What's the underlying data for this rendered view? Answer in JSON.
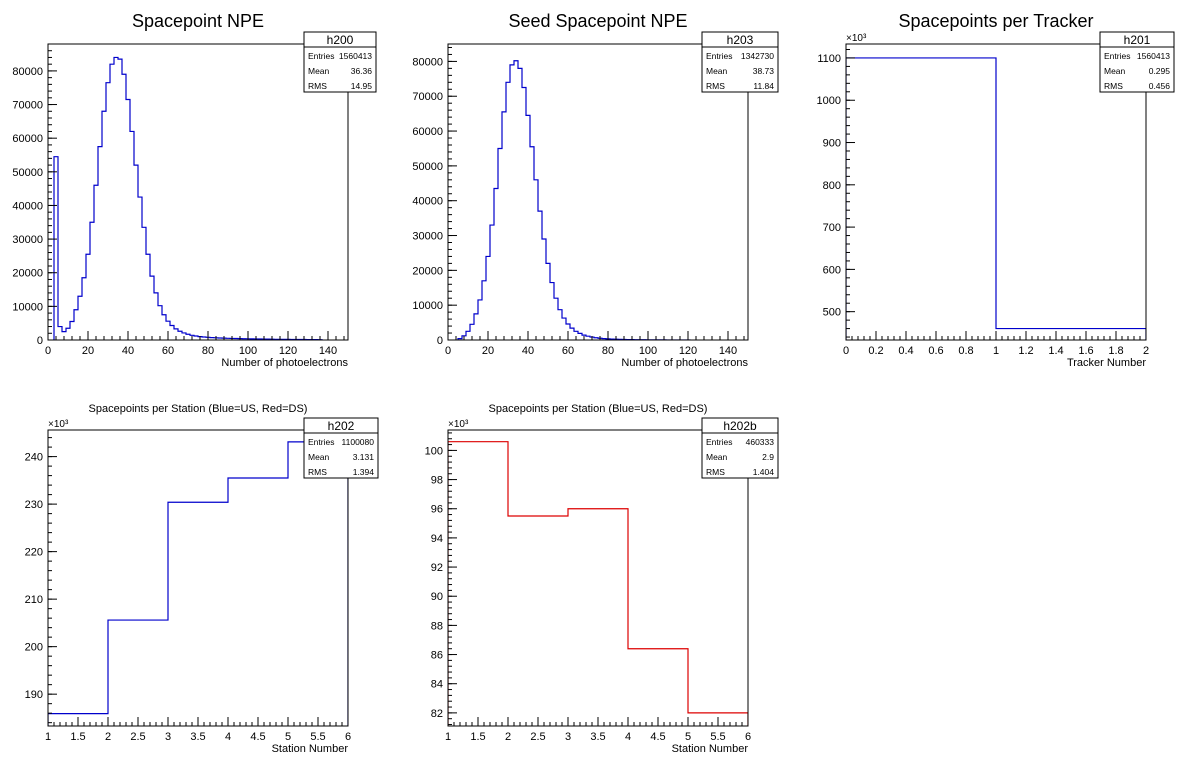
{
  "chart_data": [
    {
      "type": "bar",
      "title": "Spacepoint NPE",
      "xlabel": "Number of photoelectrons",
      "ylabel": "",
      "exponent_label": "",
      "xlim": [
        0,
        150
      ],
      "ylim": [
        0,
        88000
      ],
      "xticks": [
        0,
        20,
        40,
        60,
        80,
        100,
        120,
        140
      ],
      "yticks": [
        0,
        10000,
        20000,
        30000,
        40000,
        50000,
        60000,
        70000,
        80000
      ],
      "line_color": "#0000cc",
      "series": [
        {
          "bin_edges": [
            3,
            5,
            7,
            9,
            11,
            13,
            15,
            17,
            19,
            21,
            23,
            25,
            27,
            29,
            31,
            33,
            35,
            37,
            39,
            41,
            43,
            45,
            47,
            49,
            51,
            53,
            55,
            57,
            59,
            61,
            63,
            65,
            67,
            69,
            71,
            73,
            75,
            77,
            79,
            81,
            83,
            85,
            87,
            89,
            91,
            93,
            95,
            97,
            99,
            101,
            103,
            105,
            107,
            109,
            111,
            113,
            115,
            117,
            119,
            121,
            123,
            125,
            127,
            129,
            131,
            133,
            135,
            137
          ],
          "values": [
            54500,
            4000,
            2500,
            3500,
            5500,
            9000,
            13000,
            18500,
            25500,
            35000,
            46000,
            57500,
            68000,
            76500,
            82000,
            84000,
            83500,
            79000,
            71500,
            62000,
            52000,
            42500,
            33500,
            25500,
            19000,
            14000,
            10200,
            7500,
            5600,
            4300,
            3300,
            2600,
            2100,
            1700,
            1400,
            1200,
            1000,
            900,
            800,
            700,
            650,
            600,
            550,
            500,
            470,
            440,
            410,
            380,
            350,
            330,
            310,
            290,
            270,
            250,
            230,
            210,
            200,
            190,
            180,
            170,
            160,
            150,
            140,
            130,
            120,
            110,
            100
          ]
        }
      ],
      "stats": {
        "name": "h200",
        "entries_label": "Entries",
        "entries": "1560413",
        "mean_label": "Mean",
        "mean": "36.36",
        "rms_label": "RMS",
        "rms": "14.95"
      }
    },
    {
      "type": "bar",
      "title": "Seed Spacepoint NPE",
      "xlabel": "Number of photoelectrons",
      "ylabel": "",
      "exponent_label": "",
      "xlim": [
        0,
        150
      ],
      "ylim": [
        0,
        85000
      ],
      "xticks": [
        0,
        20,
        40,
        60,
        80,
        100,
        120,
        140
      ],
      "yticks": [
        0,
        10000,
        20000,
        30000,
        40000,
        50000,
        60000,
        70000,
        80000
      ],
      "line_color": "#0000cc",
      "series": [
        {
          "bin_edges": [
            5,
            7,
            9,
            11,
            13,
            15,
            17,
            19,
            21,
            23,
            25,
            27,
            29,
            31,
            33,
            35,
            37,
            39,
            41,
            43,
            45,
            47,
            49,
            51,
            53,
            55,
            57,
            59,
            61,
            63,
            65,
            67,
            69,
            71,
            73,
            75,
            77,
            79,
            81,
            83,
            85,
            87,
            89,
            91,
            93,
            95,
            97,
            99,
            101,
            103,
            105,
            107,
            109,
            111,
            113,
            115,
            117,
            119,
            121
          ],
          "values": [
            400,
            1200,
            2500,
            4500,
            7500,
            11500,
            17000,
            24000,
            33000,
            43500,
            55000,
            65500,
            74000,
            79000,
            80200,
            78000,
            72500,
            64500,
            55500,
            46000,
            37000,
            29000,
            22000,
            16500,
            12000,
            8700,
            6300,
            4600,
            3400,
            2500,
            1900,
            1400,
            1100,
            850,
            650,
            500,
            400,
            330,
            270,
            220,
            180,
            150,
            125,
            105,
            90,
            75,
            65,
            55,
            45,
            40,
            35,
            30,
            25,
            20,
            18,
            15,
            12,
            10
          ]
        }
      ],
      "stats": {
        "name": "h203",
        "entries_label": "Entries",
        "entries": "1342730",
        "mean_label": "Mean",
        "mean": "38.73",
        "rms_label": "RMS",
        "rms": "11.84"
      }
    },
    {
      "type": "bar",
      "title": "Spacepoints per Tracker",
      "xlabel": "Tracker Number",
      "ylabel": "",
      "exponent_label": "×10³",
      "xlim": [
        0,
        2
      ],
      "ylim": [
        433,
        1133
      ],
      "xticks": [
        0,
        0.2,
        0.4,
        0.6,
        0.8,
        1,
        1.2,
        1.4,
        1.6,
        1.8,
        2
      ],
      "yticks": [
        500,
        600,
        700,
        800,
        900,
        1000,
        1100
      ],
      "line_color": "#0000cc",
      "series": [
        {
          "bin_edges": [
            0,
            1,
            2
          ],
          "values": [
            1100,
            460
          ]
        }
      ],
      "stats": {
        "name": "h201",
        "entries_label": "Entries",
        "entries": "1560413",
        "mean_label": "Mean",
        "mean": "0.295",
        "rms_label": "RMS",
        "rms": "0.456"
      }
    },
    {
      "type": "bar",
      "title": "Spacepoints per Station (Blue=US, Red=DS)",
      "xlabel": "Station Number",
      "ylabel": "",
      "exponent_label": "×10³",
      "xlim": [
        1,
        6
      ],
      "ylim": [
        183.3,
        245.6
      ],
      "xticks": [
        1,
        1.5,
        2,
        2.5,
        3,
        3.5,
        4,
        4.5,
        5,
        5.5,
        6
      ],
      "yticks": [
        190,
        200,
        210,
        220,
        230,
        240
      ],
      "line_color": "#0000cc",
      "series": [
        {
          "bin_edges": [
            1,
            2,
            3,
            4,
            5,
            6
          ],
          "values": [
            185.9,
            205.6,
            230.4,
            235.5,
            243.1
          ]
        }
      ],
      "stats": {
        "name": "h202",
        "entries_label": "Entries",
        "entries": "1100080",
        "mean_label": "Mean",
        "mean": "3.131",
        "rms_label": "RMS",
        "rms": "1.394"
      }
    },
    {
      "type": "bar",
      "title": "Spacepoints per Station (Blue=US, Red=DS)",
      "xlabel": "Station Number",
      "ylabel": "",
      "exponent_label": "×10³",
      "xlim": [
        1,
        6
      ],
      "ylim": [
        81.1,
        101.4
      ],
      "xticks": [
        1,
        1.5,
        2,
        2.5,
        3,
        3.5,
        4,
        4.5,
        5,
        5.5,
        6
      ],
      "yticks": [
        82,
        84,
        86,
        88,
        90,
        92,
        94,
        96,
        98,
        100
      ],
      "line_color": "#dd0000",
      "series": [
        {
          "bin_edges": [
            1,
            2,
            3,
            4,
            5,
            6
          ],
          "values": [
            100.6,
            95.5,
            96.0,
            86.4,
            82.0
          ]
        }
      ],
      "stats": {
        "name": "h202b",
        "entries_label": "Entries",
        "entries": "460333",
        "mean_label": "Mean",
        "mean": "2.9",
        "rms_label": "RMS",
        "rms": "1.404"
      }
    }
  ]
}
